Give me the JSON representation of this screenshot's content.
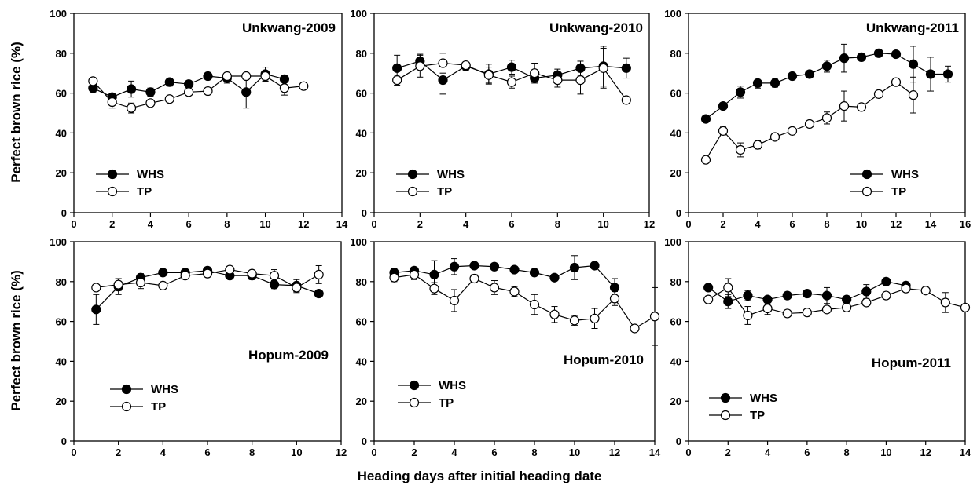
{
  "figure": {
    "ylabel": "Perfect brown rice (%)",
    "xlabel": "Heading days after initial heading date"
  },
  "chart_data": [
    {
      "type": "line",
      "title": "Unkwang-2009",
      "xlim": [
        0,
        14
      ],
      "xticks": [
        0,
        2,
        4,
        6,
        8,
        10,
        12,
        14
      ],
      "ylim": [
        0,
        100
      ],
      "yticks": [
        0,
        20,
        40,
        60,
        80,
        100
      ],
      "series": [
        {
          "name": "WHS",
          "marker": "filled",
          "x": [
            1,
            2,
            3,
            4,
            5,
            6,
            7,
            8,
            9,
            10,
            11
          ],
          "y": [
            62.5,
            58,
            62,
            60.5,
            65.5,
            64.5,
            68.5,
            67.5,
            60.5,
            69.5,
            67
          ],
          "err": [
            2,
            1,
            4,
            2,
            2,
            1.5,
            1.5,
            2.5,
            8,
            3.5,
            1.5
          ]
        },
        {
          "name": "TP",
          "marker": "open",
          "x": [
            1,
            2,
            3,
            4,
            5,
            6,
            7,
            8,
            9,
            10,
            11,
            12
          ],
          "y": [
            66,
            55.5,
            52.5,
            55,
            57,
            60.5,
            61,
            68.5,
            68.5,
            68.5,
            62.5,
            63.5
          ],
          "err": [
            1,
            3,
            2.5,
            1,
            1,
            1,
            1,
            1.5,
            1.5,
            2.5,
            3.5,
            1
          ]
        }
      ],
      "legend_position": "bottom-left"
    },
    {
      "type": "line",
      "title": "Unkwang-2010",
      "xlim": [
        0,
        12
      ],
      "xticks": [
        0,
        2,
        4,
        6,
        8,
        10,
        12
      ],
      "ylim": [
        0,
        100
      ],
      "yticks": [
        0,
        20,
        40,
        60,
        80,
        100
      ],
      "series": [
        {
          "name": "WHS",
          "marker": "filled",
          "x": [
            1,
            2,
            3,
            4,
            5,
            6,
            7,
            8,
            9,
            10,
            11
          ],
          "y": [
            72.5,
            76,
            66.5,
            73.5,
            69.5,
            73,
            67.5,
            69,
            72.5,
            73.5,
            72.5
          ],
          "err": [
            6.5,
            3.5,
            7,
            2,
            5,
            3.5,
            2,
            3,
            3.5,
            10,
            5
          ]
        },
        {
          "name": "TP",
          "marker": "open",
          "x": [
            1,
            2,
            3,
            4,
            5,
            6,
            7,
            8,
            9,
            10,
            11
          ],
          "y": [
            66.5,
            73.5,
            75,
            74,
            69,
            65.5,
            70,
            66.5,
            66.5,
            72.5,
            56.5
          ],
          "err": [
            2.5,
            5.5,
            5,
            1,
            4,
            3,
            5,
            3.5,
            7,
            10,
            1
          ]
        }
      ],
      "legend_position": "bottom-left"
    },
    {
      "type": "line",
      "title": "Unkwang-2011",
      "xlim": [
        0,
        16
      ],
      "xticks": [
        0,
        2,
        4,
        6,
        8,
        10,
        12,
        14,
        16
      ],
      "ylim": [
        0,
        100
      ],
      "yticks": [
        0,
        20,
        40,
        60,
        80,
        100
      ],
      "series": [
        {
          "name": "WHS",
          "marker": "filled",
          "x": [
            1,
            2,
            3,
            4,
            5,
            6,
            7,
            8,
            9,
            10,
            11,
            12,
            13,
            14,
            15
          ],
          "y": [
            47,
            53.5,
            60.5,
            65,
            65,
            68.5,
            69.5,
            73.5,
            77.5,
            78,
            80,
            79.5,
            74.5,
            69.5,
            69.5
          ],
          "err": [
            1,
            1.5,
            3,
            2.5,
            2,
            1.5,
            1.5,
            3,
            7,
            1,
            1,
            1,
            9,
            8.5,
            4
          ]
        },
        {
          "name": "TP",
          "marker": "open",
          "x": [
            1,
            2,
            3,
            4,
            5,
            6,
            7,
            8,
            9,
            10,
            11,
            12,
            13
          ],
          "y": [
            26.5,
            41,
            31.5,
            34,
            38,
            41,
            44.5,
            47.5,
            53.5,
            53,
            59.5,
            65.5,
            59
          ],
          "err": [
            1,
            2,
            3.5,
            2,
            1,
            1,
            1,
            3,
            7.5,
            1,
            1,
            1.5,
            9
          ]
        }
      ],
      "legend_position": "bottom-right"
    },
    {
      "type": "line",
      "title": "Hopum-2009",
      "xlim": [
        0,
        12
      ],
      "xticks": [
        0,
        2,
        4,
        6,
        8,
        10,
        12
      ],
      "ylim": [
        0,
        100
      ],
      "yticks": [
        0,
        20,
        40,
        60,
        80,
        100
      ],
      "series": [
        {
          "name": "WHS",
          "marker": "filled",
          "x": [
            1,
            2,
            3,
            4,
            5,
            6,
            7,
            8,
            9,
            10,
            11
          ],
          "y": [
            66,
            77.5,
            82,
            84.5,
            84.5,
            85.5,
            83,
            83,
            78.5,
            78,
            74
          ],
          "err": [
            7.5,
            4,
            2,
            1.5,
            1.5,
            1.5,
            1.5,
            2,
            2,
            3,
            1
          ]
        },
        {
          "name": "TP",
          "marker": "open",
          "x": [
            1,
            2,
            3,
            4,
            5,
            6,
            7,
            8,
            9,
            10,
            11
          ],
          "y": [
            77,
            78.5,
            79.5,
            78,
            83,
            84,
            86,
            84,
            83,
            77,
            83.5
          ],
          "err": [
            1,
            3,
            3,
            1,
            1.5,
            1,
            1,
            1,
            3,
            2.5,
            4.5
          ]
        }
      ],
      "legend_position": "bottom-left"
    },
    {
      "type": "line",
      "title": "Hopum-2010",
      "xlim": [
        0,
        14
      ],
      "xticks": [
        0,
        2,
        4,
        6,
        8,
        10,
        12,
        14
      ],
      "ylim": [
        0,
        100
      ],
      "yticks": [
        0,
        20,
        40,
        60,
        80,
        100
      ],
      "series": [
        {
          "name": "WHS",
          "marker": "filled",
          "x": [
            1,
            2,
            3,
            4,
            5,
            6,
            7,
            8,
            9,
            10,
            11,
            12
          ],
          "y": [
            84.5,
            85.5,
            83.5,
            87.5,
            88,
            87.5,
            86,
            84.5,
            82,
            87,
            88,
            77
          ],
          "err": [
            2,
            1.5,
            7,
            4,
            1,
            1,
            1,
            1,
            1,
            6,
            1,
            4.5
          ]
        },
        {
          "name": "TP",
          "marker": "open",
          "x": [
            1,
            2,
            3,
            4,
            5,
            6,
            7,
            8,
            9,
            10,
            11,
            12,
            13,
            14
          ],
          "y": [
            82,
            83.5,
            76.5,
            70.5,
            81.5,
            77,
            75,
            68.5,
            63.5,
            60.5,
            61.5,
            71.5,
            56.5,
            62.5
          ],
          "err": [
            2,
            2.5,
            3,
            5.5,
            2,
            3.5,
            2.5,
            5,
            4,
            2.5,
            5,
            3.5,
            1,
            14.5
          ]
        }
      ],
      "legend_position": "bottom-left"
    },
    {
      "type": "line",
      "title": "Hopum-2011",
      "xlim": [
        0,
        14
      ],
      "xticks": [
        0,
        2,
        4,
        6,
        8,
        10,
        12,
        14
      ],
      "ylim": [
        0,
        100
      ],
      "yticks": [
        0,
        20,
        40,
        60,
        80,
        100
      ],
      "series": [
        {
          "name": "WHS",
          "marker": "filled",
          "x": [
            1,
            2,
            3,
            4,
            5,
            6,
            7,
            8,
            9,
            10,
            11
          ],
          "y": [
            77,
            70,
            73,
            71,
            73,
            74,
            73,
            71,
            75,
            80,
            78
          ],
          "err": [
            1.5,
            3.5,
            2.5,
            1.5,
            1,
            1,
            4,
            1.5,
            3.5,
            1.5,
            1.5
          ]
        },
        {
          "name": "TP",
          "marker": "open",
          "x": [
            1,
            2,
            3,
            4,
            5,
            6,
            7,
            8,
            9,
            10,
            11,
            12,
            13,
            14
          ],
          "y": [
            71,
            77,
            63,
            66.5,
            64,
            64.5,
            66,
            67,
            69.5,
            73,
            76.5,
            75.5,
            69.5,
            67
          ],
          "err": [
            1,
            4.5,
            4.5,
            3,
            1,
            1,
            1,
            1,
            1,
            1,
            1,
            1,
            5,
            1
          ]
        }
      ],
      "legend_position": "bottom-left"
    }
  ]
}
